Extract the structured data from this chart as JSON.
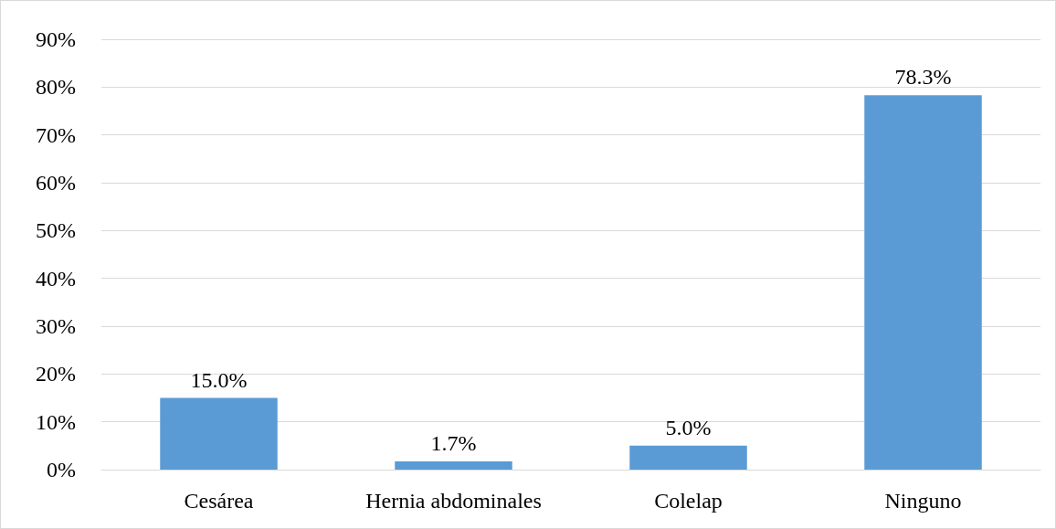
{
  "chart_data": {
    "type": "bar",
    "categories": [
      "Cesárea",
      "Hernia abdominales",
      "Colelap",
      "Ninguno"
    ],
    "values": [
      15.0,
      1.7,
      5.0,
      78.3
    ],
    "color": "#5b9bd5",
    "value_labels": [
      "15.0%",
      "1.7%",
      "5.0%",
      "78.3%"
    ],
    "ylim": [
      0,
      90
    ],
    "yticks": [
      {
        "value": 0,
        "label": "0%"
      },
      {
        "value": 10,
        "label": "10%"
      },
      {
        "value": 20,
        "label": "20%"
      },
      {
        "value": 30,
        "label": "30%"
      },
      {
        "value": 40,
        "label": "40%"
      },
      {
        "value": 50,
        "label": "50%"
      },
      {
        "value": 60,
        "label": "60%"
      },
      {
        "value": 70,
        "label": "70%"
      },
      {
        "value": 80,
        "label": "80%"
      },
      {
        "value": 90,
        "label": "90%"
      }
    ],
    "grid": "y"
  }
}
